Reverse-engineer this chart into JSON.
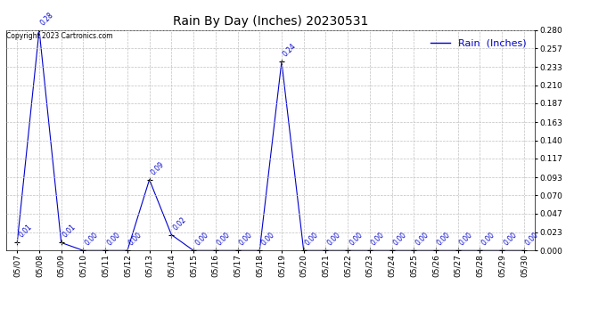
{
  "title": "Rain By Day (Inches) 20230531",
  "legend_label": "Rain  (Inches)",
  "copyright_text": "Copyright 2023 Cartronics.com",
  "x_labels": [
    "05/07",
    "05/08",
    "05/09",
    "05/10",
    "05/11",
    "05/12",
    "05/13",
    "05/14",
    "05/15",
    "05/16",
    "05/17",
    "05/18",
    "05/19",
    "05/20",
    "05/21",
    "05/22",
    "05/23",
    "05/24",
    "05/25",
    "05/26",
    "05/27",
    "05/28",
    "05/29",
    "05/30"
  ],
  "y_values": [
    0.01,
    0.28,
    0.01,
    0.0,
    0.0,
    0.0,
    0.09,
    0.02,
    0.0,
    0.0,
    0.0,
    0.0,
    0.24,
    0.0,
    0.0,
    0.0,
    0.0,
    0.0,
    0.0,
    0.0,
    0.0,
    0.0,
    0.0,
    0.0
  ],
  "line_color": "#0000cc",
  "marker_color": "#000000",
  "annotation_color": "#0000cc",
  "background_color": "#ffffff",
  "grid_color": "#c0c0c0",
  "ylim": [
    0.0,
    0.28
  ],
  "yticks": [
    0.0,
    0.023,
    0.047,
    0.07,
    0.093,
    0.117,
    0.14,
    0.163,
    0.187,
    0.21,
    0.233,
    0.257,
    0.28
  ],
  "title_fontsize": 10,
  "legend_fontsize": 8,
  "annotation_fontsize": 5.5,
  "tick_fontsize": 6.5,
  "copyright_fontsize": 5.5
}
